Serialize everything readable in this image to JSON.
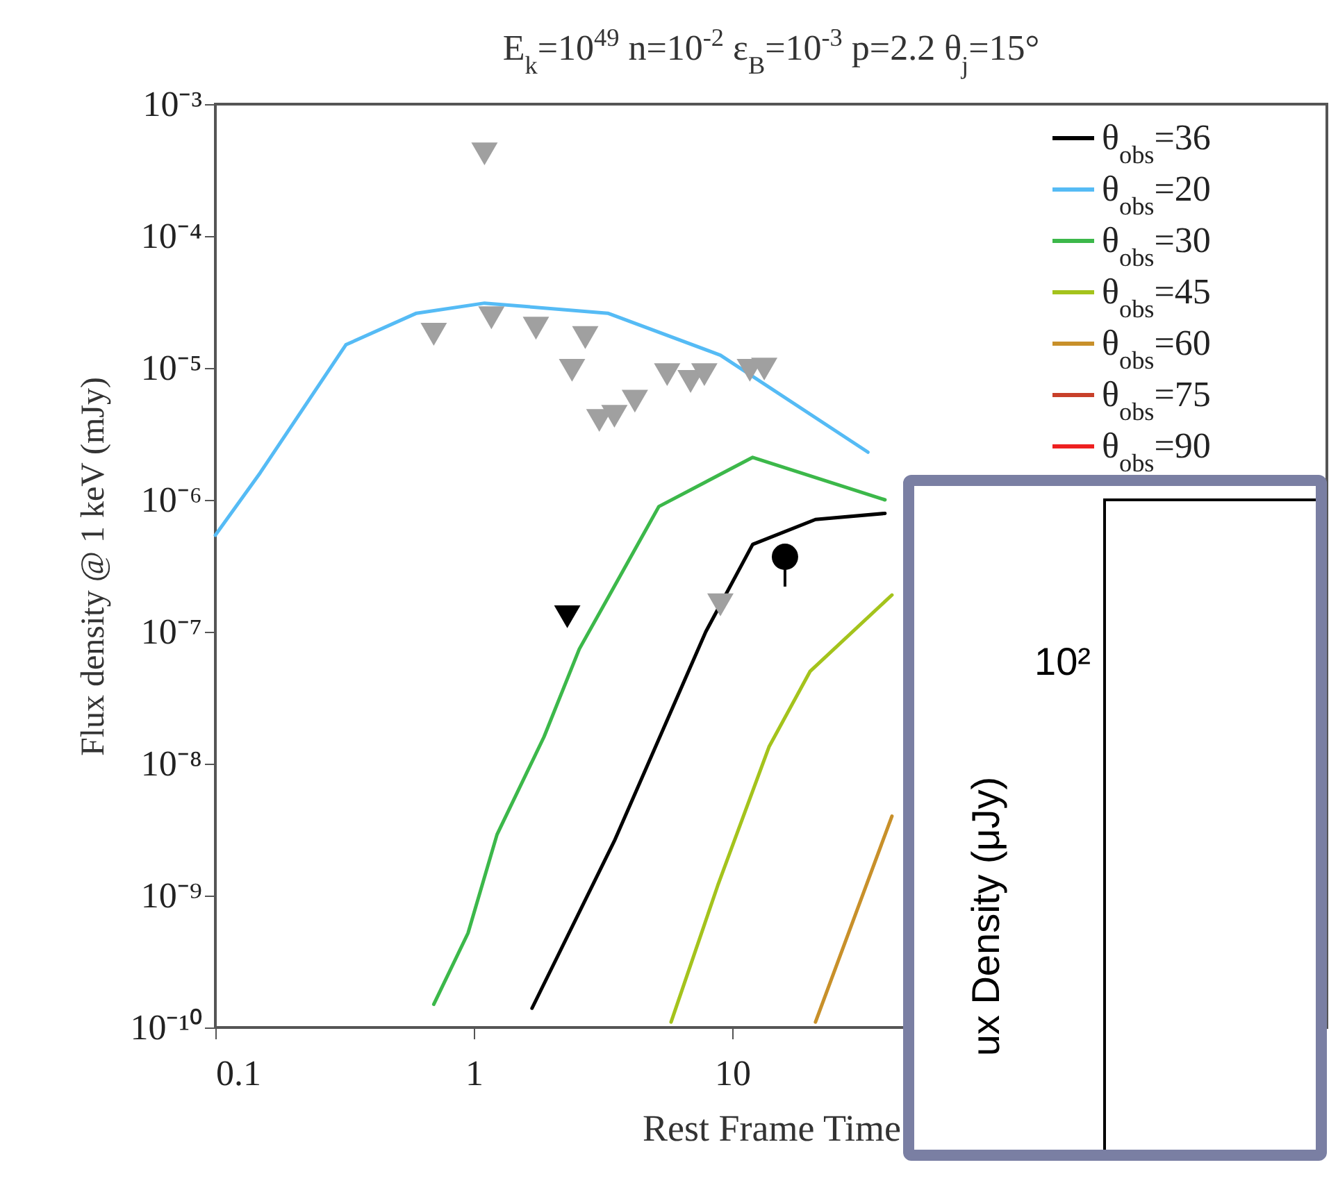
{
  "chart_data": [
    {
      "type": "line",
      "title": "E$_{k}$=10$^{49}$  n=10$^{-2}$  ε$_{B}$=10$^{-3}$  p=2.2   θ$_{j}$=15°",
      "xlabel": "Rest Frame Time",
      "ylabel": "Flux density @ 1 keV (mJy)",
      "log": "xy",
      "legend": "top right",
      "xlim": [
        0.1,
        2000
      ],
      "xticks": [
        0.1,
        1,
        10
      ],
      "ylim": [
        1e-10,
        0.001
      ],
      "yticks": [
        {
          "value": 1e-10,
          "label": "10⁻¹⁰"
        },
        {
          "value": 1e-09,
          "label": "10⁻⁹"
        },
        {
          "value": 1e-08,
          "label": "10⁻⁸"
        },
        {
          "value": 1e-07,
          "label": "10⁻⁷"
        },
        {
          "value": 1e-06,
          "label": "10⁻⁶"
        },
        {
          "value": 1e-05,
          "label": "10⁻⁵"
        },
        {
          "value": 0.0001,
          "label": "10⁻⁴"
        },
        {
          "value": 0.001,
          "label": "10⁻³"
        }
      ],
      "series": [
        {
          "name": "θ$_{obs}$=36",
          "color": "#000000",
          "x": [
            1.68,
            3.5,
            7.9,
            12,
            21,
            39
          ],
          "values": [
            1.4e-10,
            2.6e-09,
            1e-07,
            4.6e-07,
            7.1e-07,
            7.9e-07
          ]
        },
        {
          "name": "θ$_{obs}$=20",
          "color": "#55bbf5",
          "x": [
            0.1,
            0.149,
            0.32,
            0.6,
            1.1,
            3.3,
            9.0,
            33.5
          ],
          "values": [
            5.4e-07,
            1.6e-06,
            1.5e-05,
            2.6e-05,
            3.1e-05,
            2.6e-05,
            1.25e-05,
            2.3e-06
          ]
        },
        {
          "name": "θ$_{obs}$=30",
          "color": "#3cb84a",
          "x": [
            0.7,
            0.95,
            1.23,
            1.87,
            2.56,
            3.3,
            5.2,
            12,
            39
          ],
          "values": [
            1.5e-10,
            5.2e-10,
            2.9e-09,
            1.6e-08,
            7.4e-08,
            1.8e-07,
            8.9e-07,
            2.1e-06,
            1e-06
          ]
        },
        {
          "name": "θ$_{obs}$=45",
          "color": "#a4c31c",
          "x": [
            5.8,
            8.8,
            13.9,
            20,
            41.5
          ],
          "values": [
            1.1e-10,
            1.2e-09,
            1.35e-08,
            5e-08,
            1.9e-07
          ]
        },
        {
          "name": "θ$_{obs}$=60",
          "color": "#c8902a",
          "x": [
            21,
            41.5
          ],
          "values": [
            1.1e-10,
            4e-09
          ]
        },
        {
          "name": "θ$_{obs}$=75",
          "color": "#c8402a"
        },
        {
          "name": "θ$_{obs}$=90",
          "color": "#ee2020"
        },
        {
          "type": "scatter",
          "marker": "triangle",
          "color": "#a0a0a0",
          "x": [
            1.1,
            0.7,
            1.17,
            1.74,
            2.7,
            2.4,
            3.06,
            3.5,
            4.2,
            5.6,
            6.9,
            7.8,
            11.7,
            13.3,
            9.0
          ],
          "values": [
            0.00042,
            1.8e-05,
            2.4e-05,
            2e-05,
            1.7e-05,
            9.6e-06,
            4e-06,
            4.3e-06,
            5.6e-06,
            8.9e-06,
            7.9e-06,
            8.9e-06,
            9.6e-06,
            9.8e-06,
            1.6e-07
          ]
        },
        {
          "type": "scatter",
          "marker": "triangle",
          "color": "#000000",
          "x": [
            2.3
          ],
          "values": [
            1.3e-07
          ]
        },
        {
          "type": "scatter",
          "marker": "circle",
          "color": "#000000",
          "x": [
            16
          ],
          "values": [
            3.7e-07
          ],
          "errors": [
            [
              2.2e-07,
              3.7e-07
            ]
          ]
        }
      ]
    },
    {
      "type": "other",
      "ylabel": "ux Density (μJy)",
      "annotations": [
        "10²"
      ]
    }
  ]
}
